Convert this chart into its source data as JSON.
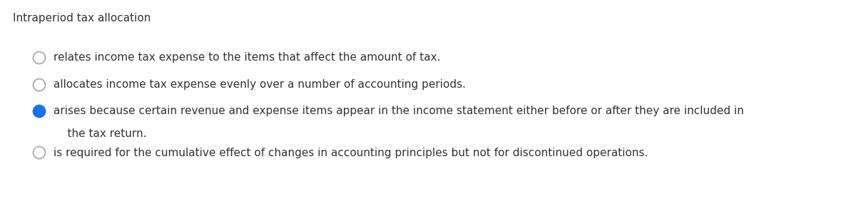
{
  "title": "Intraperiod tax allocation",
  "title_fontsize": 11,
  "title_color": "#333333",
  "background_color": "#ffffff",
  "options": [
    {
      "text": "relates income tax expense to the items that affect the amount of tax.",
      "line2": null,
      "selected": false,
      "circle_fill": "#ffffff",
      "circle_edge": "#aaaaaa"
    },
    {
      "text": "allocates income tax expense evenly over a number of accounting periods.",
      "line2": null,
      "selected": false,
      "circle_fill": "#ffffff",
      "circle_edge": "#aaaaaa"
    },
    {
      "text": "arises because certain revenue and expense items appear in the income statement either before or after they are included in",
      "line2": "    the tax return.",
      "selected": true,
      "circle_fill": "#1a73e8",
      "circle_edge": "#1a73e8"
    },
    {
      "text": "is required for the cumulative effect of changes in accounting principles but not for discontinued operations.",
      "line2": null,
      "selected": false,
      "circle_fill": "#ffffff",
      "circle_edge": "#aaaaaa"
    }
  ],
  "text_color": "#333333",
  "text_fontsize": 11,
  "figsize": [
    12.0,
    2.86
  ],
  "dpi": 100
}
